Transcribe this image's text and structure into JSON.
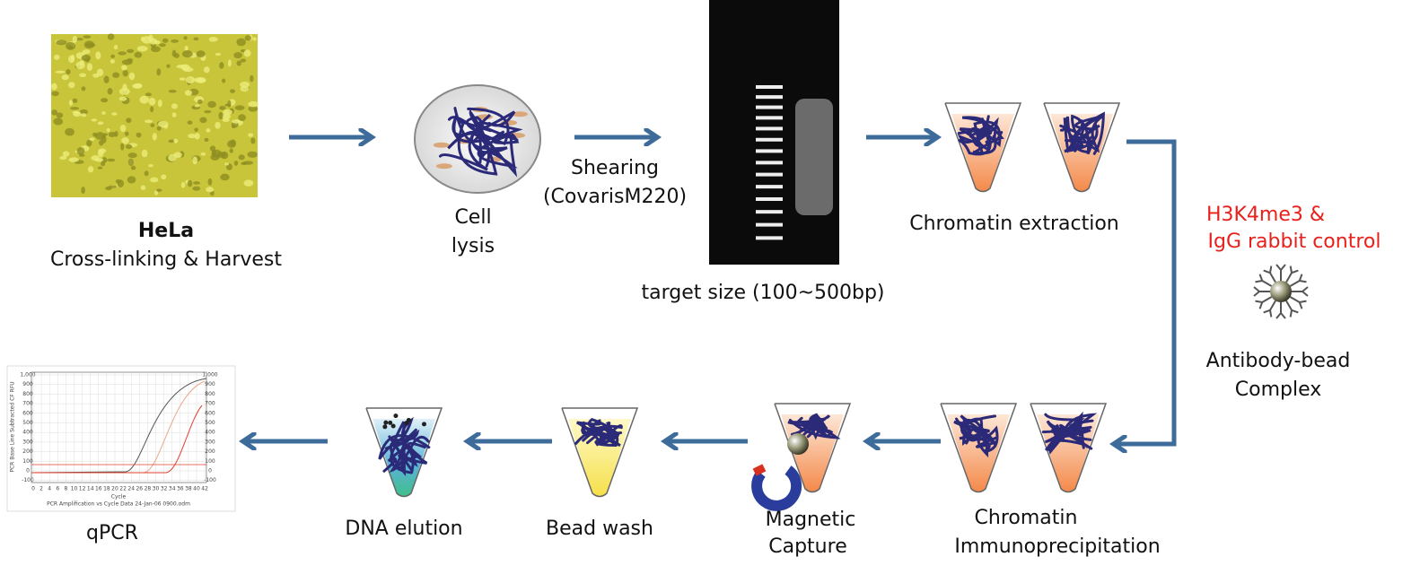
{
  "hela": {
    "title": "HeLa",
    "subtitle": "Cross-linking & Harvest"
  },
  "lysis": {
    "lines": [
      "Cell",
      "lysis"
    ]
  },
  "shearing": {
    "lines": [
      "Shearing",
      "(CovarisM220)"
    ]
  },
  "gel": {
    "caption": "target size (100~500bp)"
  },
  "extraction": {
    "label": "Chromatin extraction"
  },
  "antibody": {
    "note": [
      "H3K4me3 &",
      "IgG rabbit control"
    ],
    "label": [
      "Antibody-bead",
      "Complex"
    ]
  },
  "chip": {
    "lines": [
      "Chromatin",
      "Immunoprecipitation"
    ]
  },
  "magnetic": {
    "lines": [
      "Magnetic",
      "Capture"
    ]
  },
  "wash": {
    "label": "Bead wash"
  },
  "elution": {
    "label": "DNA elution"
  },
  "qpcr": {
    "label": "qPCR",
    "yticks": [
      "1,000",
      "900",
      "800",
      "700",
      "600",
      "500",
      "400",
      "300",
      "200",
      "100",
      "0",
      "-100"
    ],
    "xticks": [
      "0",
      "2",
      "4",
      "6",
      "8",
      "10",
      "12",
      "14",
      "16",
      "18",
      "20",
      "22",
      "24",
      "26",
      "28",
      "30",
      "32",
      "34",
      "36",
      "38",
      "40",
      "42"
    ],
    "ytitle": "PCR Base Line Subtracted CF RFU",
    "xtitle": "Cycle",
    "caption": "PCR Amplification vs Cycle Data 24-Jan-06 0900.odm"
  }
}
